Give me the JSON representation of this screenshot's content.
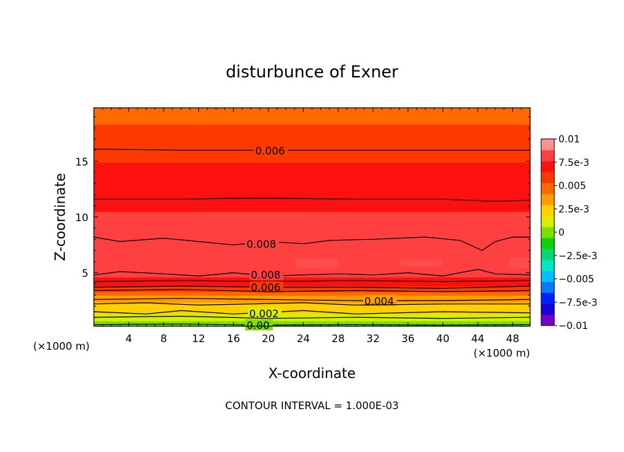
{
  "chart_data": {
    "type": "heatmap",
    "title": "disturbunce of Exner",
    "xlabel": "X-coordinate",
    "ylabel": "Z-coordinate",
    "x_unit": "(×1000 m)",
    "y_unit": "(×1000 m)",
    "footer": "CONTOUR INTERVAL = 1.000E-03",
    "xlim": [
      0,
      50
    ],
    "ylim": [
      0.2,
      19.8
    ],
    "x_ticks": [
      4,
      8,
      12,
      16,
      20,
      24,
      28,
      32,
      36,
      40,
      44,
      48
    ],
    "y_ticks": [
      5,
      10,
      15
    ],
    "colorbar": {
      "min": -0.01,
      "max": 0.01,
      "tick_labels": [
        "0.01",
        "7.5e-3",
        "0.005",
        "2.5e-3",
        "0",
        "-2.5e-3",
        "-0.005",
        "-7.5e-3",
        "-0.01"
      ],
      "colors": [
        "#7a00c8",
        "#1a00d8",
        "#0020ff",
        "#0a78ff",
        "#00c0ff",
        "#00e8c0",
        "#00d870",
        "#10d010",
        "#7ce000",
        "#d8f000",
        "#ffd000",
        "#ff9c00",
        "#ff6a00",
        "#ff3a00",
        "#ff1010",
        "#ff4040",
        "#ff9090"
      ]
    },
    "z_profile": [
      {
        "z": 0.2,
        "value": 0.0
      },
      {
        "z": 1.0,
        "value": 0.001
      },
      {
        "z": 1.5,
        "value": 0.002
      },
      {
        "z": 2.3,
        "value": 0.003
      },
      {
        "z": 2.9,
        "value": 0.004
      },
      {
        "z": 3.5,
        "value": 0.006
      },
      {
        "z": 4.0,
        "value": 0.007
      },
      {
        "z": 5.0,
        "value": 0.008
      },
      {
        "z": 6.0,
        "value": 0.0088
      },
      {
        "z": 8.0,
        "value": 0.008
      },
      {
        "z": 11.5,
        "value": 0.0075
      },
      {
        "z": 13.5,
        "value": 0.007
      },
      {
        "z": 16.0,
        "value": 0.006
      },
      {
        "z": 17.5,
        "value": 0.0055
      },
      {
        "z": 19.5,
        "value": 0.005
      }
    ],
    "contour_lines": [
      {
        "label": "0.006",
        "label_x": 18.5,
        "points": [
          [
            0,
            16.1
          ],
          [
            10,
            16.0
          ],
          [
            20,
            16.0
          ],
          [
            30,
            16.0
          ],
          [
            40,
            16.0
          ],
          [
            50,
            16.0
          ]
        ]
      },
      {
        "label": "",
        "label_x": null,
        "points": [
          [
            0,
            11.6
          ],
          [
            10,
            11.6
          ],
          [
            18,
            11.7
          ],
          [
            30,
            11.6
          ],
          [
            40,
            11.6
          ],
          [
            46,
            11.4
          ],
          [
            50,
            11.5
          ]
        ]
      },
      {
        "label": "0.008",
        "label_x": 17.5,
        "points": [
          [
            0,
            8.2
          ],
          [
            3,
            7.8
          ],
          [
            8,
            8.1
          ],
          [
            12,
            7.8
          ],
          [
            16,
            7.5
          ],
          [
            20,
            7.8
          ],
          [
            24,
            7.6
          ],
          [
            27,
            7.9
          ],
          [
            32,
            8.0
          ],
          [
            38,
            8.2
          ],
          [
            42,
            7.9
          ],
          [
            44.5,
            7.0
          ],
          [
            46,
            7.8
          ],
          [
            48,
            8.2
          ],
          [
            50,
            8.2
          ]
        ]
      },
      {
        "label": "0.008",
        "label_x": 18.0,
        "points": [
          [
            0,
            4.8
          ],
          [
            3,
            5.1
          ],
          [
            8,
            4.9
          ],
          [
            12,
            4.7
          ],
          [
            16,
            5.0
          ],
          [
            20,
            4.7
          ],
          [
            24,
            4.8
          ],
          [
            28,
            4.9
          ],
          [
            32,
            4.8
          ],
          [
            36,
            5.0
          ],
          [
            40,
            4.7
          ],
          [
            44,
            5.3
          ],
          [
            46,
            4.9
          ],
          [
            50,
            4.8
          ]
        ]
      },
      {
        "label": "",
        "label_x": null,
        "points": [
          [
            0,
            4.2
          ],
          [
            10,
            4.3
          ],
          [
            20,
            4.2
          ],
          [
            30,
            4.3
          ],
          [
            40,
            4.2
          ],
          [
            50,
            4.3
          ]
        ]
      },
      {
        "label": "0.006",
        "label_x": 18.0,
        "points": [
          [
            0,
            3.7
          ],
          [
            10,
            3.8
          ],
          [
            20,
            3.7
          ],
          [
            30,
            3.7
          ],
          [
            40,
            3.6
          ],
          [
            50,
            3.8
          ]
        ]
      },
      {
        "label": "",
        "label_x": null,
        "points": [
          [
            0,
            3.4
          ],
          [
            10,
            3.5
          ],
          [
            20,
            3.3
          ],
          [
            30,
            3.4
          ],
          [
            40,
            3.3
          ],
          [
            50,
            3.4
          ]
        ]
      },
      {
        "label": "0.004",
        "label_x": 31.0,
        "points": [
          [
            0,
            2.6
          ],
          [
            10,
            2.7
          ],
          [
            20,
            2.6
          ],
          [
            30,
            2.5
          ],
          [
            40,
            2.5
          ],
          [
            50,
            2.6
          ]
        ]
      },
      {
        "label": "",
        "label_x": null,
        "points": [
          [
            0,
            2.2
          ],
          [
            6,
            2.3
          ],
          [
            12,
            2.1
          ],
          [
            24,
            2.3
          ],
          [
            30,
            2.1
          ],
          [
            40,
            2.2
          ],
          [
            50,
            2.2
          ]
        ]
      },
      {
        "label": "0.002",
        "label_x": 17.8,
        "points": [
          [
            0,
            1.5
          ],
          [
            6,
            1.3
          ],
          [
            10,
            1.6
          ],
          [
            16,
            1.3
          ],
          [
            24,
            1.6
          ],
          [
            30,
            1.3
          ],
          [
            40,
            1.5
          ],
          [
            50,
            1.4
          ]
        ]
      },
      {
        "label": "",
        "label_x": null,
        "points": [
          [
            0,
            1.0
          ],
          [
            10,
            1.1
          ],
          [
            20,
            0.9
          ],
          [
            30,
            1.0
          ],
          [
            40,
            0.9
          ],
          [
            50,
            1.0
          ]
        ]
      },
      {
        "label": "0.00",
        "label_x": 17.5,
        "points": [
          [
            0,
            0.35
          ],
          [
            10,
            0.4
          ],
          [
            20,
            0.3
          ],
          [
            30,
            0.35
          ],
          [
            40,
            0.3
          ],
          [
            50,
            0.35
          ]
        ]
      }
    ],
    "highlight_patches": [
      {
        "x0": 23,
        "x1": 28,
        "z0": 5.4,
        "z1": 6.3,
        "color": "#ff4c4c"
      },
      {
        "x0": 35,
        "x1": 40,
        "z0": 5.6,
        "z1": 6.2,
        "color": "#ff4c4c"
      },
      {
        "x0": 47.5,
        "x1": 50,
        "z0": 5.4,
        "z1": 6.4,
        "color": "#ff4c4c"
      }
    ]
  }
}
